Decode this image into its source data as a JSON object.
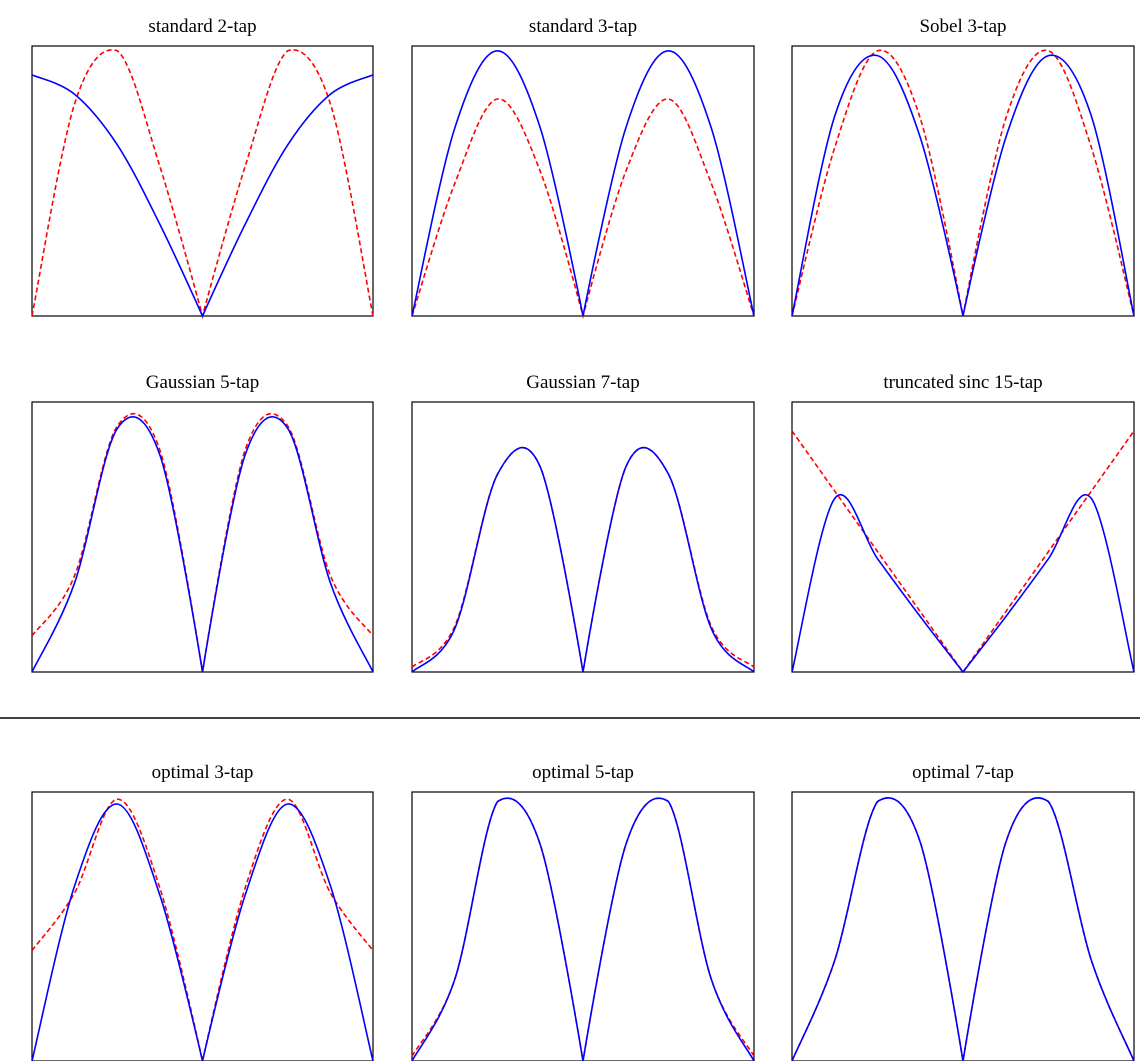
{
  "chart_data": [
    {
      "type": "line",
      "title": "standard 2-tap",
      "xlim": [
        -1,
        1
      ],
      "ylim": [
        0,
        1.12
      ],
      "grid": false,
      "x": [
        -1,
        -0.75,
        -0.5,
        -0.25,
        0,
        0.25,
        0.5,
        0.75,
        1
      ],
      "series": [
        {
          "style": "solid",
          "color": "#0000ff",
          "values": [
            1.0,
            0.92,
            0.71,
            0.38,
            0,
            0.38,
            0.71,
            0.92,
            1.0
          ]
        },
        {
          "style": "dashed",
          "color": "#ff0000",
          "values": [
            0,
            0.88,
            1.1,
            0.62,
            0,
            0.62,
            1.1,
            0.88,
            0
          ]
        }
      ]
    },
    {
      "type": "line",
      "title": "standard 3-tap",
      "xlim": [
        -1,
        1
      ],
      "ylim": [
        0,
        1.12
      ],
      "grid": false,
      "x": [
        -1,
        -0.75,
        -0.5,
        -0.25,
        0,
        0.25,
        0.5,
        0.75,
        1
      ],
      "series": [
        {
          "style": "solid",
          "color": "#0000ff",
          "values": [
            0,
            0.78,
            1.1,
            0.78,
            0,
            0.78,
            1.1,
            0.78,
            0
          ]
        },
        {
          "style": "dashed",
          "color": "#ff0000",
          "values": [
            0,
            0.55,
            0.9,
            0.6,
            0,
            0.6,
            0.9,
            0.55,
            0
          ]
        }
      ]
    },
    {
      "type": "line",
      "title": "Sobel 3-tap",
      "xlim": [
        -1,
        1
      ],
      "ylim": [
        0,
        1.12
      ],
      "grid": false,
      "x": [
        -1,
        -0.75,
        -0.5,
        -0.25,
        0,
        0.25,
        0.5,
        0.75,
        1
      ],
      "series": [
        {
          "style": "solid",
          "color": "#0000ff",
          "values": [
            0,
            0.83,
            1.08,
            0.74,
            0,
            0.74,
            1.08,
            0.83,
            0
          ]
        },
        {
          "style": "dashed",
          "color": "#ff0000",
          "values": [
            0,
            0.7,
            1.1,
            0.82,
            0,
            0.82,
            1.1,
            0.7,
            0
          ]
        }
      ]
    },
    {
      "type": "line",
      "title": "Gaussian 5-tap",
      "xlim": [
        -1,
        1
      ],
      "ylim": [
        0,
        1.12
      ],
      "grid": false,
      "x": [
        -1,
        -0.75,
        -0.5,
        -0.25,
        0,
        0.25,
        0.5,
        0.75,
        1
      ],
      "series": [
        {
          "style": "solid",
          "color": "#0000ff",
          "values": [
            0,
            0.37,
            1.01,
            0.9,
            0,
            0.9,
            1.01,
            0.37,
            0
          ]
        },
        {
          "style": "dashed",
          "color": "#ff0000",
          "values": [
            0.15,
            0.4,
            1.02,
            0.92,
            0,
            0.92,
            1.02,
            0.4,
            0.15
          ]
        }
      ]
    },
    {
      "type": "line",
      "title": "Gaussian 7-tap",
      "xlim": [
        -1,
        1
      ],
      "ylim": [
        0,
        1.12
      ],
      "grid": false,
      "x": [
        -1,
        -0.75,
        -0.5,
        -0.25,
        0,
        0.25,
        0.5,
        0.75,
        1
      ],
      "series": [
        {
          "style": "solid",
          "color": "#0000ff",
          "values": [
            0,
            0.18,
            0.82,
            0.85,
            0,
            0.85,
            0.82,
            0.18,
            0
          ]
        },
        {
          "style": "dashed",
          "color": "#ff0000",
          "values": [
            0.02,
            0.19,
            0.82,
            0.85,
            0,
            0.85,
            0.82,
            0.19,
            0.02
          ]
        }
      ]
    },
    {
      "type": "line",
      "title": "truncated sinc 15-tap",
      "xlim": [
        -1,
        1
      ],
      "ylim": [
        0,
        1.12
      ],
      "grid": false,
      "x": [
        -1,
        -0.75,
        -0.5,
        -0.25,
        0,
        0.25,
        0.5,
        0.75,
        1
      ],
      "series": [
        {
          "style": "solid",
          "color": "#0000ff",
          "values": [
            0,
            0.72,
            0.47,
            0.23,
            0,
            0.23,
            0.47,
            0.72,
            0
          ]
        },
        {
          "style": "dashed",
          "color": "#ff0000",
          "values": [
            1.0,
            0.75,
            0.5,
            0.25,
            0,
            0.25,
            0.5,
            0.75,
            1.0
          ]
        }
      ]
    },
    {
      "type": "line",
      "title": "optimal 3-tap",
      "xlim": [
        -1,
        1
      ],
      "ylim": [
        0,
        1.12
      ],
      "grid": false,
      "x": [
        -1,
        -0.75,
        -0.5,
        -0.25,
        0,
        0.25,
        0.5,
        0.75,
        1
      ],
      "series": [
        {
          "style": "solid",
          "color": "#0000ff",
          "values": [
            0,
            0.73,
            1.07,
            0.69,
            0,
            0.69,
            1.07,
            0.73,
            0
          ]
        },
        {
          "style": "dashed",
          "color": "#ff0000",
          "values": [
            0.46,
            0.7,
            1.09,
            0.72,
            0,
            0.72,
            1.09,
            0.7,
            0.46
          ]
        }
      ]
    },
    {
      "type": "line",
      "title": "optimal 5-tap",
      "xlim": [
        -1,
        1
      ],
      "ylim": [
        0,
        1.12
      ],
      "grid": false,
      "x": [
        -1,
        -0.75,
        -0.5,
        -0.25,
        0,
        0.25,
        0.5,
        0.75,
        1
      ],
      "series": [
        {
          "style": "solid",
          "color": "#0000ff",
          "values": [
            0,
            0.34,
            1.08,
            0.9,
            0,
            0.9,
            1.08,
            0.34,
            0
          ]
        },
        {
          "style": "dashed",
          "color": "#ff0000",
          "values": [
            0.02,
            0.34,
            1.08,
            0.9,
            0,
            0.9,
            1.08,
            0.34,
            0.02
          ]
        }
      ]
    },
    {
      "type": "line",
      "title": "optimal 7-tap",
      "xlim": [
        -1,
        1
      ],
      "ylim": [
        0,
        1.12
      ],
      "grid": false,
      "x": [
        -1,
        -0.75,
        -0.5,
        -0.25,
        0,
        0.25,
        0.5,
        0.75,
        1
      ],
      "series": [
        {
          "style": "solid",
          "color": "#0000ff",
          "values": [
            0,
            0.42,
            1.08,
            0.91,
            0,
            0.91,
            1.08,
            0.42,
            0
          ]
        },
        {
          "style": "dashed",
          "color": "#0000ff",
          "values": [
            0,
            0.42,
            1.08,
            0.91,
            0,
            0.91,
            1.08,
            0.42,
            0
          ]
        }
      ]
    }
  ]
}
